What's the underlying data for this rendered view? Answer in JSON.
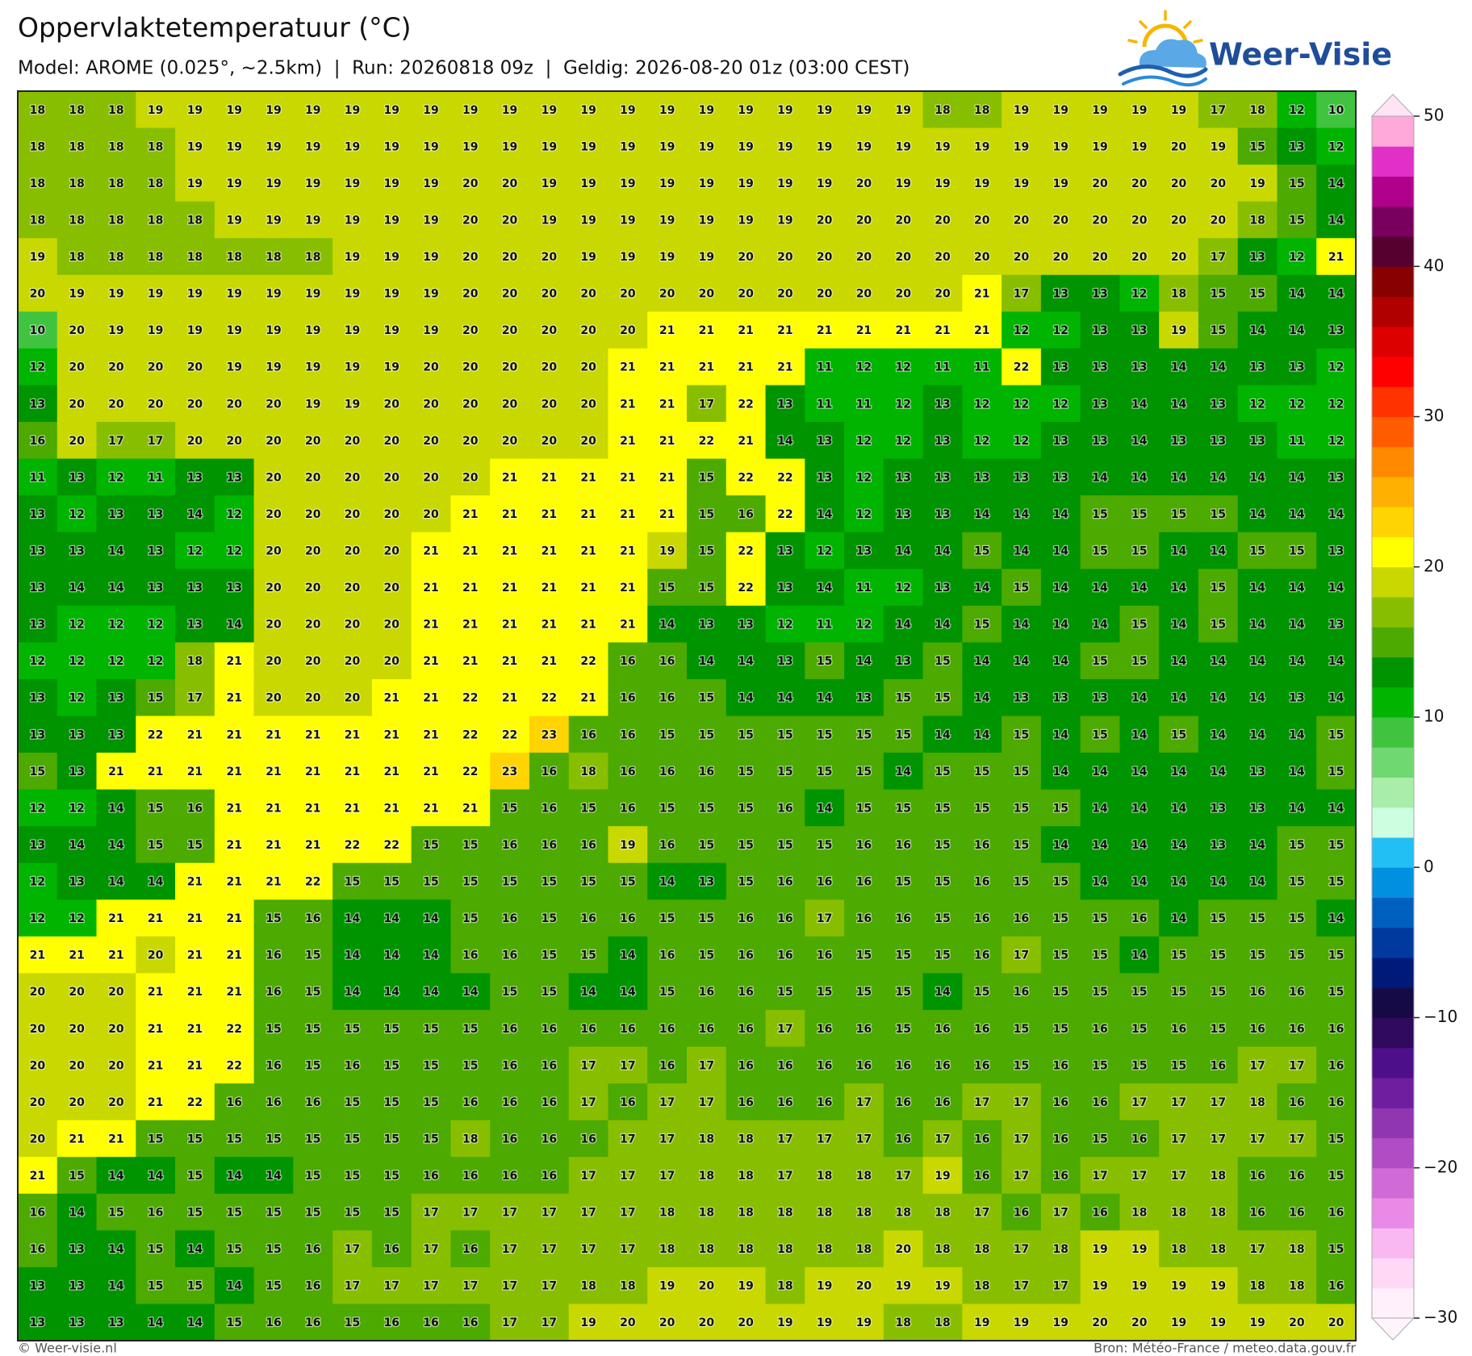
{
  "header": {
    "title": "Oppervlaktetemperatuur (°C)",
    "subtitle": "Model: AROME (0.025°, ~2.5km)  |  Run: 20260818 09z  |  Geldig: 2026-08-20 01z (03:00 CEST)",
    "logo": "Weer-Visie"
  },
  "footer": {
    "left": "© Weer-visie.nl",
    "right": "Bron: Météo-France / meteo.data.gouv.fr"
  },
  "grid": {
    "rows": [
      [
        18,
        18,
        18,
        19,
        19,
        19,
        19,
        19,
        19,
        19,
        19,
        19,
        19,
        19,
        19,
        19,
        19,
        19,
        19,
        19,
        19,
        19,
        19,
        18,
        18,
        19,
        19,
        19,
        19,
        19,
        17,
        18,
        12,
        10
      ],
      [
        18,
        18,
        18,
        18,
        19,
        19,
        19,
        19,
        19,
        19,
        19,
        19,
        19,
        19,
        19,
        19,
        19,
        19,
        19,
        19,
        19,
        19,
        19,
        19,
        19,
        19,
        19,
        19,
        19,
        20,
        19,
        15,
        13,
        12
      ],
      [
        18,
        18,
        18,
        18,
        19,
        19,
        19,
        19,
        19,
        19,
        19,
        20,
        20,
        19,
        19,
        19,
        19,
        19,
        19,
        19,
        19,
        20,
        19,
        19,
        19,
        19,
        19,
        20,
        20,
        20,
        20,
        19,
        15,
        14
      ],
      [
        18,
        18,
        18,
        18,
        18,
        19,
        19,
        19,
        19,
        19,
        19,
        20,
        20,
        19,
        19,
        19,
        19,
        19,
        19,
        19,
        20,
        20,
        20,
        20,
        20,
        20,
        20,
        20,
        20,
        20,
        20,
        18,
        15,
        14
      ],
      [
        19,
        18,
        18,
        18,
        18,
        18,
        18,
        18,
        19,
        19,
        19,
        20,
        20,
        20,
        19,
        19,
        19,
        19,
        20,
        20,
        20,
        20,
        20,
        20,
        20,
        20,
        20,
        20,
        20,
        20,
        17,
        13,
        12,
        21
      ],
      [
        20,
        19,
        19,
        19,
        19,
        19,
        19,
        19,
        19,
        19,
        19,
        20,
        20,
        20,
        20,
        20,
        20,
        20,
        20,
        20,
        20,
        20,
        20,
        20,
        21,
        17,
        13,
        13,
        12,
        18,
        15,
        15,
        14,
        14
      ],
      [
        10,
        20,
        19,
        19,
        19,
        19,
        19,
        19,
        19,
        19,
        19,
        20,
        20,
        20,
        20,
        20,
        21,
        21,
        21,
        21,
        21,
        21,
        21,
        21,
        21,
        12,
        12,
        13,
        13,
        19,
        15,
        14,
        14,
        13
      ],
      [
        12,
        20,
        20,
        20,
        20,
        19,
        19,
        19,
        19,
        19,
        20,
        20,
        20,
        20,
        20,
        21,
        21,
        21,
        21,
        21,
        11,
        12,
        12,
        11,
        11,
        22,
        13,
        13,
        13,
        14,
        14,
        13,
        13,
        12
      ],
      [
        13,
        20,
        20,
        20,
        20,
        20,
        20,
        19,
        19,
        20,
        20,
        20,
        20,
        20,
        20,
        21,
        21,
        17,
        22,
        13,
        11,
        11,
        12,
        13,
        12,
        12,
        12,
        13,
        14,
        14,
        13,
        12,
        12,
        12
      ],
      [
        16,
        20,
        17,
        17,
        20,
        20,
        20,
        20,
        20,
        20,
        20,
        20,
        20,
        20,
        20,
        21,
        21,
        22,
        21,
        14,
        13,
        12,
        12,
        13,
        12,
        12,
        13,
        13,
        14,
        13,
        13,
        13,
        11,
        12
      ],
      [
        11,
        13,
        12,
        11,
        13,
        13,
        20,
        20,
        20,
        20,
        20,
        20,
        21,
        21,
        21,
        21,
        21,
        15,
        22,
        22,
        13,
        12,
        13,
        13,
        13,
        13,
        13,
        14,
        14,
        14,
        14,
        14,
        14,
        13
      ],
      [
        13,
        12,
        13,
        13,
        14,
        12,
        20,
        20,
        20,
        20,
        20,
        21,
        21,
        21,
        21,
        21,
        21,
        15,
        16,
        22,
        14,
        12,
        13,
        13,
        14,
        14,
        14,
        15,
        15,
        15,
        15,
        14,
        14,
        14
      ],
      [
        13,
        13,
        14,
        13,
        12,
        12,
        20,
        20,
        20,
        20,
        21,
        21,
        21,
        21,
        21,
        21,
        19,
        15,
        22,
        13,
        12,
        13,
        14,
        14,
        15,
        14,
        14,
        15,
        15,
        14,
        14,
        15,
        15,
        13
      ],
      [
        13,
        14,
        14,
        13,
        13,
        13,
        20,
        20,
        20,
        20,
        21,
        21,
        21,
        21,
        21,
        21,
        15,
        15,
        22,
        13,
        14,
        11,
        12,
        13,
        14,
        15,
        14,
        14,
        14,
        14,
        15,
        14,
        14,
        14
      ],
      [
        13,
        12,
        12,
        12,
        13,
        14,
        20,
        20,
        20,
        20,
        21,
        21,
        21,
        21,
        21,
        21,
        14,
        13,
        13,
        12,
        11,
        12,
        14,
        14,
        15,
        14,
        14,
        14,
        15,
        14,
        15,
        14,
        14,
        13
      ],
      [
        12,
        12,
        12,
        12,
        18,
        21,
        20,
        20,
        20,
        20,
        21,
        21,
        21,
        21,
        22,
        16,
        16,
        14,
        14,
        13,
        15,
        14,
        13,
        15,
        14,
        14,
        14,
        15,
        15,
        14,
        14,
        14,
        14,
        14
      ],
      [
        13,
        12,
        13,
        15,
        17,
        21,
        20,
        20,
        20,
        21,
        21,
        22,
        21,
        22,
        21,
        16,
        16,
        15,
        14,
        14,
        14,
        13,
        15,
        15,
        14,
        13,
        13,
        13,
        14,
        14,
        14,
        14,
        13,
        14
      ],
      [
        13,
        13,
        13,
        22,
        21,
        21,
        21,
        21,
        21,
        21,
        21,
        22,
        22,
        23,
        16,
        16,
        15,
        15,
        15,
        15,
        15,
        15,
        15,
        14,
        14,
        15,
        14,
        15,
        14,
        15,
        14,
        14,
        14,
        15
      ],
      [
        15,
        13,
        21,
        21,
        21,
        21,
        21,
        21,
        21,
        21,
        21,
        22,
        23,
        16,
        18,
        16,
        16,
        16,
        15,
        15,
        15,
        15,
        14,
        15,
        15,
        15,
        14,
        14,
        14,
        14,
        14,
        13,
        14,
        15
      ],
      [
        12,
        12,
        14,
        15,
        16,
        21,
        21,
        21,
        21,
        21,
        21,
        21,
        15,
        16,
        15,
        16,
        15,
        15,
        15,
        16,
        14,
        15,
        15,
        15,
        15,
        15,
        15,
        14,
        14,
        14,
        13,
        13,
        14,
        14
      ],
      [
        13,
        14,
        14,
        15,
        15,
        21,
        21,
        21,
        22,
        22,
        15,
        15,
        16,
        16,
        16,
        19,
        16,
        15,
        15,
        15,
        15,
        16,
        16,
        15,
        16,
        15,
        14,
        14,
        14,
        14,
        13,
        14,
        15,
        15
      ],
      [
        12,
        13,
        14,
        14,
        21,
        21,
        21,
        22,
        15,
        15,
        15,
        15,
        15,
        15,
        15,
        15,
        14,
        13,
        15,
        16,
        16,
        16,
        15,
        15,
        16,
        15,
        15,
        14,
        14,
        14,
        14,
        14,
        15,
        15
      ],
      [
        12,
        12,
        21,
        21,
        21,
        21,
        15,
        16,
        14,
        14,
        14,
        15,
        16,
        15,
        16,
        16,
        15,
        15,
        16,
        16,
        17,
        16,
        16,
        15,
        16,
        16,
        15,
        15,
        16,
        14,
        15,
        15,
        15,
        14
      ],
      [
        21,
        21,
        21,
        20,
        21,
        21,
        16,
        15,
        14,
        14,
        14,
        16,
        16,
        15,
        15,
        14,
        16,
        15,
        16,
        16,
        16,
        15,
        15,
        15,
        16,
        17,
        15,
        15,
        14,
        15,
        15,
        15,
        15,
        15
      ],
      [
        20,
        20,
        20,
        21,
        21,
        21,
        16,
        15,
        14,
        14,
        14,
        14,
        15,
        15,
        14,
        14,
        15,
        16,
        16,
        15,
        15,
        15,
        15,
        14,
        15,
        16,
        15,
        15,
        15,
        15,
        15,
        16,
        16,
        15
      ],
      [
        20,
        20,
        20,
        21,
        21,
        22,
        15,
        15,
        15,
        15,
        15,
        15,
        16,
        16,
        16,
        16,
        16,
        16,
        16,
        17,
        16,
        16,
        15,
        16,
        16,
        15,
        15,
        16,
        15,
        16,
        15,
        16,
        16,
        16
      ],
      [
        20,
        20,
        20,
        21,
        21,
        22,
        16,
        15,
        16,
        15,
        15,
        15,
        16,
        16,
        17,
        17,
        16,
        17,
        16,
        16,
        16,
        16,
        16,
        16,
        16,
        15,
        16,
        15,
        15,
        15,
        16,
        17,
        17,
        16
      ],
      [
        20,
        20,
        20,
        21,
        22,
        16,
        16,
        16,
        15,
        15,
        15,
        16,
        16,
        16,
        17,
        16,
        17,
        17,
        16,
        16,
        16,
        17,
        16,
        16,
        17,
        17,
        16,
        16,
        17,
        17,
        17,
        18,
        16,
        16
      ],
      [
        20,
        21,
        21,
        15,
        15,
        15,
        15,
        15,
        15,
        15,
        15,
        18,
        16,
        16,
        16,
        17,
        17,
        18,
        18,
        17,
        17,
        17,
        16,
        17,
        16,
        17,
        16,
        15,
        16,
        17,
        17,
        17,
        17,
        15
      ],
      [
        21,
        15,
        14,
        14,
        15,
        14,
        14,
        15,
        15,
        15,
        16,
        16,
        16,
        16,
        17,
        17,
        17,
        18,
        18,
        17,
        18,
        18,
        17,
        19,
        16,
        17,
        16,
        17,
        17,
        17,
        18,
        16,
        16,
        15
      ],
      [
        16,
        14,
        15,
        16,
        15,
        15,
        15,
        15,
        15,
        15,
        17,
        17,
        17,
        17,
        17,
        17,
        18,
        18,
        18,
        18,
        18,
        18,
        18,
        18,
        17,
        16,
        17,
        16,
        18,
        18,
        18,
        16,
        16,
        16
      ],
      [
        16,
        13,
        14,
        15,
        14,
        15,
        15,
        16,
        17,
        16,
        17,
        16,
        17,
        17,
        17,
        17,
        18,
        18,
        18,
        18,
        18,
        18,
        20,
        18,
        18,
        17,
        18,
        19,
        19,
        18,
        18,
        17,
        18,
        15
      ],
      [
        13,
        13,
        14,
        15,
        15,
        14,
        15,
        16,
        17,
        17,
        17,
        17,
        17,
        17,
        18,
        18,
        19,
        20,
        19,
        18,
        19,
        20,
        19,
        19,
        18,
        17,
        17,
        19,
        19,
        19,
        19,
        18,
        18,
        16
      ],
      [
        13,
        13,
        13,
        14,
        14,
        15,
        16,
        16,
        15,
        16,
        16,
        16,
        17,
        17,
        19,
        20,
        20,
        20,
        20,
        19,
        19,
        19,
        18,
        18,
        19,
        19,
        19,
        20,
        20,
        19,
        19,
        19,
        20,
        20
      ]
    ]
  },
  "colorbar": {
    "ticks": [
      {
        "value": -30,
        "label": "−30"
      },
      {
        "value": -20,
        "label": "−20"
      },
      {
        "value": -10,
        "label": "−10"
      },
      0,
      10,
      20,
      30,
      40,
      50
    ],
    "colors": [
      "#fff0fb",
      "#ffd8f6",
      "#f9b8f2",
      "#e88ae6",
      "#d06ad6",
      "#b04cc4",
      "#9036b0",
      "#6e1e9e",
      "#4e0f8a",
      "#300a5e",
      "#160a46",
      "#001a7a",
      "#003a9e",
      "#0060c0",
      "#0090e0",
      "#22bff5",
      "#ccffe0",
      "#a8eea8",
      "#70d870",
      "#40c440",
      "#00b400",
      "#009400",
      "#4caa00",
      "#88be00",
      "#c8d800",
      "#ffff00",
      "#ffd400",
      "#ffb000",
      "#ff8a00",
      "#ff5c00",
      "#ff3200",
      "#ff0000",
      "#dd0000",
      "#b00000",
      "#880000",
      "#560030",
      "#7a0060",
      "#b0008c",
      "#e030c8",
      "#ffa8da"
    ],
    "under_color": "#fff4fc",
    "over_color": "#ffe4f4"
  }
}
